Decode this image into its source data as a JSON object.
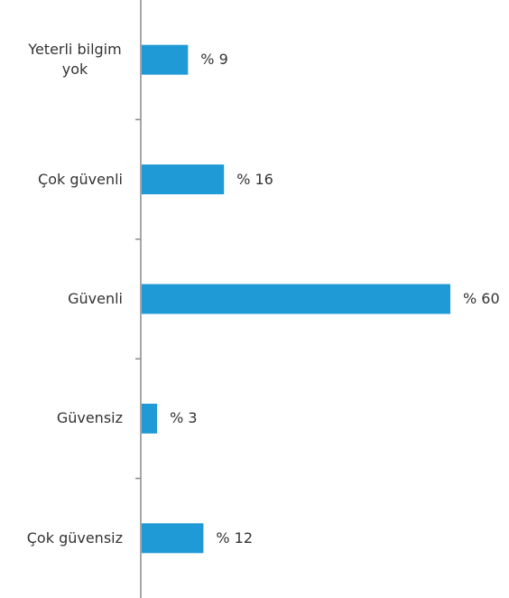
{
  "chart_data": {
    "type": "bar",
    "orientation": "horizontal",
    "categories": [
      "Yeterli bilgim yok",
      "Çok güvenli",
      "Güvenli",
      "Güvensiz",
      "Çok güvensiz"
    ],
    "values": [
      9,
      16,
      60,
      3,
      12
    ],
    "value_labels": [
      "% 9",
      "% 16",
      "% 60",
      "% 3",
      "% 12"
    ],
    "color": "#1f9ad6"
  }
}
